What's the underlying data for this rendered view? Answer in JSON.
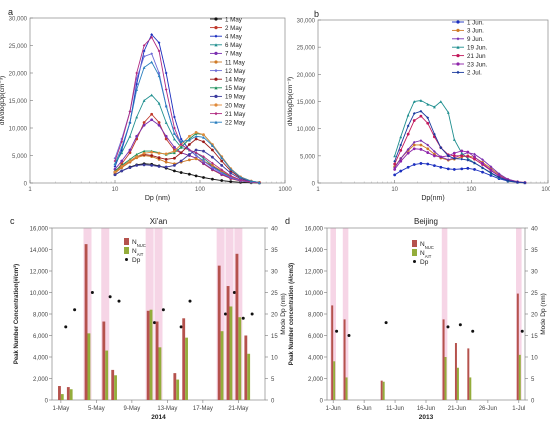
{
  "figure": {
    "panel_letters": [
      "a",
      "b",
      "c",
      "d"
    ]
  },
  "chart_data": [
    {
      "panel": "a",
      "type": "line",
      "xscale": "log",
      "xlim": [
        1,
        1000
      ],
      "xticks": [
        1,
        10,
        100,
        1000
      ],
      "ylim": [
        0,
        30000
      ],
      "yticks": [
        "0",
        "5,000",
        "10,000",
        "15,000",
        "20,000",
        "25,000",
        "30,000"
      ],
      "xlabel": "Dp (nm)",
      "ylabel": "dN/dlogDp(cm⁻³)",
      "legend_position": "right",
      "colors": [
        "#111111",
        "#c0392b",
        "#1b2fbf",
        "#1f8f8f",
        "#7a2fb0",
        "#cf7a26",
        "#6b6bd6",
        "#9a1a1a",
        "#1a8f5a",
        "#3a3a9e",
        "#e08a3a",
        "#b02a80",
        "#2a7fbf"
      ],
      "x": [
        10,
        12,
        15,
        18,
        22,
        27,
        33,
        40,
        50,
        60,
        75,
        90,
        110,
        140,
        180,
        230,
        300,
        400,
        500
      ],
      "series": [
        {
          "name": "1 May",
          "values": [
            1500,
            2200,
            2900,
            3300,
            3500,
            3400,
            3100,
            2700,
            2200,
            1900,
            1600,
            1300,
            1000,
            700,
            450,
            250,
            120,
            50,
            20
          ]
        },
        {
          "name": "2 May",
          "values": [
            2000,
            3500,
            5500,
            8000,
            11000,
            12500,
            11000,
            8000,
            6000,
            5500,
            5000,
            4500,
            3500,
            2400,
            1500,
            800,
            350,
            120,
            40
          ]
        },
        {
          "name": "4 May",
          "values": [
            3000,
            6000,
            11000,
            18000,
            24000,
            27000,
            25500,
            20000,
            12000,
            8000,
            6000,
            5000,
            4000,
            3000,
            2000,
            1100,
            500,
            180,
            60
          ]
        },
        {
          "name": "6 May",
          "values": [
            3500,
            5500,
            8500,
            12000,
            15000,
            16000,
            14500,
            11000,
            8000,
            6500,
            6000,
            5500,
            4500,
            3200,
            2000,
            1000,
            400,
            150,
            50
          ]
        },
        {
          "name": "7 May",
          "values": [
            2500,
            4000,
            6000,
            8500,
            10500,
            11500,
            10500,
            8500,
            6500,
            5500,
            5000,
            4500,
            3600,
            2500,
            1600,
            900,
            400,
            150,
            50
          ]
        },
        {
          "name": "11 May",
          "values": [
            1800,
            2800,
            3800,
            4600,
            5000,
            4800,
            4300,
            3800,
            3500,
            3800,
            4200,
            4400,
            4000,
            3200,
            2200,
            1200,
            500,
            180,
            60
          ]
        },
        {
          "name": "12 May",
          "values": [
            4500,
            8000,
            13000,
            19000,
            23000,
            23500,
            20000,
            14000,
            9000,
            7000,
            6000,
            5000,
            4000,
            2800,
            1800,
            1000,
            450,
            160,
            50
          ]
        },
        {
          "name": "14 May",
          "values": [
            2000,
            3000,
            4000,
            4800,
            5200,
            5000,
            4600,
            4300,
            4500,
            5500,
            7000,
            8000,
            7500,
            6000,
            4000,
            2200,
            900,
            300,
            90
          ]
        },
        {
          "name": "15 May",
          "values": [
            2200,
            3200,
            4300,
            5200,
            5800,
            5800,
            5500,
            5200,
            5500,
            6500,
            8000,
            9000,
            8800,
            7000,
            4800,
            2600,
            1100,
            350,
            100
          ]
        },
        {
          "name": "19 May",
          "values": [
            1500,
            2200,
            2800,
            3200,
            3300,
            3200,
            3000,
            2900,
            3200,
            4000,
            5200,
            6000,
            5800,
            4700,
            3200,
            1800,
            750,
            250,
            80
          ]
        },
        {
          "name": "20 May",
          "values": [
            2000,
            3000,
            4000,
            4800,
            5400,
            5600,
            5400,
            5300,
            5800,
            7000,
            8500,
            9200,
            8800,
            7000,
            4800,
            2600,
            1100,
            350,
            100
          ]
        },
        {
          "name": "21 May",
          "values": [
            4000,
            7500,
            13000,
            20000,
            25000,
            26500,
            24000,
            17000,
            10000,
            7000,
            6000,
            5500,
            4800,
            3600,
            2400,
            1300,
            550,
            180,
            60
          ]
        },
        {
          "name": "22 May",
          "values": [
            3500,
            6500,
            11000,
            17000,
            21000,
            22000,
            19500,
            14000,
            9000,
            7500,
            7800,
            8500,
            8300,
            6800,
            4600,
            2500,
            1050,
            340,
            100
          ]
        }
      ],
      "legend_entries": [
        "1 May",
        "2 May",
        "4 May",
        "6 May",
        "7 May",
        "11 May",
        "12 May",
        "14 May",
        "15 May",
        "19 May",
        "20 May",
        "21 May",
        "22 May"
      ]
    },
    {
      "panel": "b",
      "type": "line",
      "xscale": "log",
      "xlim": [
        1,
        1000
      ],
      "xticks": [
        1,
        10,
        100,
        1000
      ],
      "ylim": [
        0,
        30000
      ],
      "yticks": [
        "0",
        "5,000",
        "10,000",
        "15,000",
        "20,000",
        "25,000",
        "30,000"
      ],
      "xlabel": "Dp(nm)",
      "ylabel": "dN/dlogDp(cm⁻³)",
      "legend_position": "top-right",
      "colors": [
        "#1b2fbf",
        "#cf7a26",
        "#7a2fb0",
        "#1f8f8f",
        "#c2185b",
        "#8e24aa",
        "#1a3a9e"
      ],
      "x": [
        10,
        12,
        15,
        18,
        22,
        27,
        33,
        40,
        50,
        60,
        75,
        90,
        110,
        140,
        180,
        230,
        300,
        400,
        500
      ],
      "series": [
        {
          "name": "1 Jun.",
          "values": [
            1500,
            2200,
            2900,
            3400,
            3600,
            3500,
            3200,
            2900,
            2600,
            2500,
            2600,
            2700,
            2500,
            2000,
            1400,
            800,
            350,
            120,
            40
          ]
        },
        {
          "name": "3 Jun.",
          "values": [
            3000,
            4500,
            6000,
            7000,
            7000,
            6300,
            5300,
            4600,
            4200,
            4400,
            4800,
            5000,
            4700,
            3800,
            2700,
            1500,
            650,
            220,
            70
          ]
        },
        {
          "name": "9 Jun.",
          "values": [
            2800,
            4500,
            6200,
            7500,
            7800,
            7000,
            5800,
            4800,
            4300,
            4600,
            5200,
            5600,
            5300,
            4300,
            3000,
            1700,
            700,
            240,
            80
          ]
        },
        {
          "name": "19 Jun.",
          "values": [
            5000,
            8500,
            12500,
            15000,
            15200,
            14500,
            14000,
            15000,
            13000,
            8000,
            5500,
            4500,
            3700,
            2800,
            1800,
            1000,
            420,
            140,
            45
          ]
        },
        {
          "name": "21 Jun",
          "values": [
            3500,
            6000,
            9000,
            11500,
            12300,
            11000,
            8500,
            6500,
            5200,
            5000,
            5000,
            4900,
            4400,
            3400,
            2300,
            1300,
            550,
            180,
            60
          ]
        },
        {
          "name": "23 Jun.",
          "values": [
            2500,
            4000,
            5500,
            6300,
            6200,
            5600,
            5000,
            4800,
            5000,
            5500,
            5900,
            5700,
            4800,
            3600,
            2400,
            1300,
            550,
            180,
            60
          ]
        },
        {
          "name": "2 Jul.",
          "values": [
            4000,
            7000,
            10500,
            12800,
            13200,
            12000,
            9000,
            6500,
            5000,
            4500,
            4400,
            4200,
            3700,
            2800,
            1900,
            1050,
            450,
            150,
            50
          ]
        }
      ],
      "legend_entries": [
        "1 Jun.",
        "3 Jun.",
        "9 Jun.",
        "19 Jun.",
        "21 Jun",
        "23 Jun.",
        "2 Jul."
      ]
    },
    {
      "panel": "c",
      "type": "bar",
      "title": "Xi'an",
      "ylim": [
        0,
        16000
      ],
      "yticks": [
        "0",
        "2,000",
        "4,000",
        "6,000",
        "8,000",
        "10,000",
        "12,000",
        "14,000",
        "16,000"
      ],
      "y2lim": [
        0,
        40
      ],
      "y2ticks": [
        "0",
        "5",
        "10",
        "15",
        "20",
        "25",
        "30",
        "35",
        "40"
      ],
      "ylabel": "Peak Number Concentration(#/cm³)",
      "y2label": "Mode Dp (nm)",
      "xlabel": "2014",
      "xticks": [
        "1-May",
        "5-May",
        "9-May",
        "13-May",
        "17-May",
        "21-May"
      ],
      "xtick_days": [
        1,
        5,
        9,
        13,
        17,
        21
      ],
      "xlim": [
        0,
        24
      ],
      "legend_entries": [
        "N_NUC",
        "N_AIT",
        "Dp"
      ],
      "colors": {
        "nuc": "#b5524d",
        "ait": "#94ad3b",
        "highlight": "#f6d5e6",
        "dp": "#111111"
      },
      "days": [
        1,
        2,
        4,
        6,
        7,
        11,
        12,
        14,
        15,
        19,
        20,
        21,
        22
      ],
      "n_nuc": [
        1300,
        1200,
        14500,
        7300,
        2800,
        8300,
        7300,
        2500,
        7600,
        12500,
        10600,
        13600,
        6000
      ],
      "n_ait": [
        550,
        1000,
        6200,
        4600,
        2300,
        8400,
        4900,
        1900,
        5800,
        6400,
        8700,
        7700,
        4300
      ],
      "dp": [
        17,
        21,
        25,
        24,
        23,
        18,
        21,
        17,
        23,
        20,
        25,
        19,
        20
      ],
      "highlight_days": [
        4,
        6,
        11,
        12,
        19,
        20,
        21
      ]
    },
    {
      "panel": "d",
      "type": "bar",
      "title": "Beijing",
      "ylim": [
        0,
        16000
      ],
      "yticks": [
        "0",
        "2,000",
        "4,000",
        "6,000",
        "8,000",
        "10,000",
        "12,000",
        "14,000",
        "16,000"
      ],
      "y2lim": [
        0,
        40
      ],
      "y2ticks": [
        "0",
        "5",
        "10",
        "15",
        "20",
        "25",
        "30",
        "35",
        "40"
      ],
      "ylabel": "Peak  Number concentration (#/cm3)",
      "y2label": "Mode Dp (nm)",
      "xlabel": "2013",
      "xticks": [
        "1-Jun",
        "6-Jun",
        "11-Jun",
        "16-Jun",
        "21-Jun",
        "26-Jun",
        "1-Jul"
      ],
      "xtick_days": [
        1,
        6,
        11,
        16,
        21,
        26,
        31
      ],
      "xlim": [
        0,
        32
      ],
      "legend_entries": [
        "N_NUC",
        "N_AIT",
        "Dp"
      ],
      "colors": {
        "nuc": "#b5524d",
        "ait": "#94ad3b",
        "highlight": "#f6d5e6",
        "dp": "#111111"
      },
      "days": [
        1,
        3,
        9,
        19,
        21,
        23,
        31
      ],
      "n_nuc": [
        8800,
        7500,
        1800,
        7500,
        5300,
        4800,
        9900
      ],
      "n_ait": [
        3600,
        2100,
        1700,
        4000,
        3000,
        2100,
        4200
      ],
      "dp": [
        16,
        15,
        18,
        17,
        17.5,
        16,
        16
      ],
      "highlight_days": [
        1,
        3,
        19,
        31
      ]
    }
  ]
}
